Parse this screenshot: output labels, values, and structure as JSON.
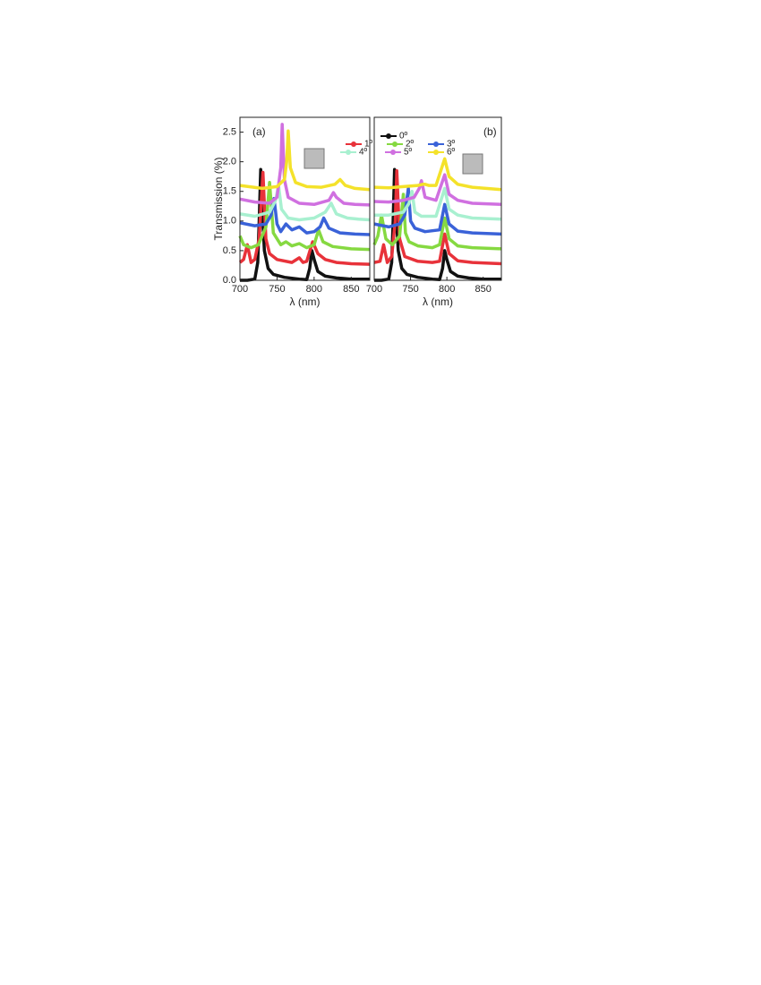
{
  "chart_data": [
    {
      "type": "line",
      "panel_label": "(a)",
      "xlabel": "λ (nm)",
      "ylabel": "Transmission (%)",
      "xlim": [
        700,
        875
      ],
      "ylim": [
        0,
        2.75
      ],
      "xticks": [
        700,
        750,
        800,
        850
      ],
      "yticks": [
        {
          "value": 0,
          "label": "0.0"
        },
        {
          "value": 0.5,
          "label": "0.5"
        },
        {
          "value": 1,
          "label": "1.0"
        },
        {
          "value": 1.5,
          "label": "1.5"
        },
        {
          "value": 2,
          "label": "2.0"
        },
        {
          "value": 2.5,
          "label": "2.5"
        }
      ],
      "series": [
        {
          "name": "0º",
          "color": "#111111",
          "x": [
            700,
            710,
            720,
            724,
            726,
            728,
            730,
            733,
            738,
            745,
            760,
            780,
            790,
            794,
            797,
            800,
            805,
            815,
            830,
            850,
            875
          ],
          "values": [
            0,
            0,
            0.02,
            0.3,
            1.0,
            1.87,
            1.2,
            0.5,
            0.2,
            0.1,
            0.05,
            0.02,
            0.01,
            0.2,
            0.5,
            0.35,
            0.15,
            0.07,
            0.04,
            0.02,
            0.02
          ]
        },
        {
          "name": "1º",
          "color": "#e8323a",
          "x": [
            700,
            705,
            710,
            715,
            720,
            726,
            731,
            735,
            740,
            750,
            770,
            780,
            785,
            790,
            798,
            805,
            815,
            830,
            850,
            875
          ],
          "values": [
            0.3,
            0.35,
            0.6,
            0.3,
            0.35,
            0.7,
            1.82,
            0.7,
            0.45,
            0.35,
            0.3,
            0.38,
            0.3,
            0.32,
            0.65,
            0.45,
            0.35,
            0.3,
            0.28,
            0.27
          ]
        },
        {
          "name": "2º",
          "color": "#86d941",
          "x": [
            700,
            705,
            715,
            725,
            735,
            740,
            745,
            755,
            762,
            770,
            780,
            790,
            800,
            806,
            812,
            825,
            850,
            875
          ],
          "values": [
            0.75,
            0.6,
            0.55,
            0.6,
            0.9,
            1.65,
            0.8,
            0.6,
            0.65,
            0.58,
            0.62,
            0.55,
            0.6,
            0.85,
            0.65,
            0.57,
            0.53,
            0.52
          ]
        },
        {
          "name": "3º",
          "color": "#3a62d8",
          "x": [
            700,
            720,
            735,
            742,
            746,
            750,
            755,
            762,
            770,
            780,
            790,
            800,
            808,
            813,
            820,
            835,
            855,
            875
          ],
          "values": [
            0.97,
            0.92,
            0.95,
            1.1,
            1.38,
            0.95,
            0.82,
            0.95,
            0.85,
            0.9,
            0.8,
            0.82,
            0.9,
            1.05,
            0.88,
            0.8,
            0.78,
            0.77
          ]
        },
        {
          "name": "4º",
          "color": "#a8f0d0",
          "x": [
            700,
            720,
            740,
            748,
            752,
            756,
            765,
            780,
            800,
            815,
            823,
            830,
            845,
            860,
            875
          ],
          "values": [
            1.12,
            1.08,
            1.15,
            1.35,
            1.6,
            1.2,
            1.05,
            1.02,
            1.05,
            1.15,
            1.3,
            1.12,
            1.05,
            1.03,
            1.02
          ]
        },
        {
          "name": "5º",
          "color": "#d070e0",
          "x": [
            700,
            720,
            740,
            750,
            755,
            757,
            760,
            765,
            780,
            800,
            820,
            826,
            830,
            840,
            855,
            875
          ],
          "values": [
            1.37,
            1.32,
            1.3,
            1.4,
            1.9,
            2.63,
            1.7,
            1.4,
            1.3,
            1.28,
            1.35,
            1.48,
            1.4,
            1.3,
            1.28,
            1.27
          ]
        },
        {
          "name": "6º",
          "color": "#f4e22a",
          "x": [
            700,
            730,
            750,
            760,
            763,
            765,
            768,
            775,
            790,
            810,
            828,
            835,
            842,
            855,
            875
          ],
          "values": [
            1.6,
            1.55,
            1.58,
            1.7,
            2.0,
            2.52,
            1.9,
            1.65,
            1.58,
            1.57,
            1.62,
            1.7,
            1.6,
            1.55,
            1.53
          ]
        }
      ]
    },
    {
      "type": "line",
      "panel_label": "(b)",
      "xlabel": "λ (nm)",
      "xlim": [
        700,
        875
      ],
      "ylim": [
        0,
        2.75
      ],
      "xticks": [
        700,
        750,
        800,
        850
      ],
      "series": [
        {
          "color": "#111111",
          "x": [
            700,
            710,
            720,
            724,
            726,
            728,
            730,
            733,
            738,
            745,
            760,
            780,
            790,
            794,
            797,
            800,
            805,
            815,
            830,
            850,
            875
          ],
          "values": [
            0,
            0,
            0.02,
            0.3,
            1.0,
            1.87,
            1.2,
            0.5,
            0.2,
            0.1,
            0.05,
            0.02,
            0.01,
            0.2,
            0.5,
            0.35,
            0.15,
            0.07,
            0.04,
            0.02,
            0.02
          ]
        },
        {
          "color": "#e8323a",
          "x": [
            700,
            708,
            713,
            718,
            724,
            729,
            731,
            735,
            742,
            760,
            780,
            790,
            797,
            803,
            815,
            835,
            875
          ],
          "values": [
            0.3,
            0.32,
            0.6,
            0.3,
            0.4,
            1.0,
            1.85,
            0.7,
            0.4,
            0.32,
            0.3,
            0.32,
            0.78,
            0.45,
            0.33,
            0.3,
            0.28
          ]
        },
        {
          "color": "#86d941",
          "x": [
            700,
            705,
            710,
            716,
            725,
            735,
            740,
            743,
            748,
            760,
            780,
            790,
            797,
            803,
            815,
            835,
            875
          ],
          "values": [
            0.6,
            0.75,
            1.1,
            0.7,
            0.6,
            0.75,
            1.45,
            0.8,
            0.65,
            0.58,
            0.55,
            0.6,
            1.05,
            0.7,
            0.58,
            0.55,
            0.53
          ]
        },
        {
          "color": "#3a62d8",
          "x": [
            700,
            720,
            735,
            742,
            747,
            750,
            756,
            770,
            790,
            797,
            803,
            815,
            835,
            875
          ],
          "values": [
            0.95,
            0.9,
            0.95,
            1.1,
            1.55,
            1.0,
            0.88,
            0.82,
            0.85,
            1.28,
            0.95,
            0.83,
            0.8,
            0.78
          ]
        },
        {
          "color": "#a8f0d0",
          "x": [
            700,
            720,
            740,
            748,
            752,
            756,
            765,
            785,
            797,
            803,
            815,
            835,
            875
          ],
          "values": [
            1.1,
            1.1,
            1.15,
            1.3,
            1.5,
            1.15,
            1.08,
            1.08,
            1.55,
            1.2,
            1.1,
            1.05,
            1.03
          ]
        },
        {
          "color": "#d070e0",
          "x": [
            700,
            720,
            740,
            755,
            762,
            765,
            770,
            785,
            797,
            803,
            815,
            835,
            875
          ],
          "values": [
            1.33,
            1.32,
            1.35,
            1.4,
            1.55,
            1.68,
            1.4,
            1.35,
            1.78,
            1.45,
            1.35,
            1.3,
            1.28
          ]
        },
        {
          "color": "#f4e22a",
          "x": [
            700,
            720,
            740,
            760,
            767,
            770,
            775,
            785,
            797,
            803,
            815,
            835,
            875
          ],
          "values": [
            1.57,
            1.56,
            1.58,
            1.6,
            1.62,
            1.62,
            1.6,
            1.6,
            2.05,
            1.75,
            1.62,
            1.57,
            1.53
          ]
        }
      ]
    }
  ]
}
